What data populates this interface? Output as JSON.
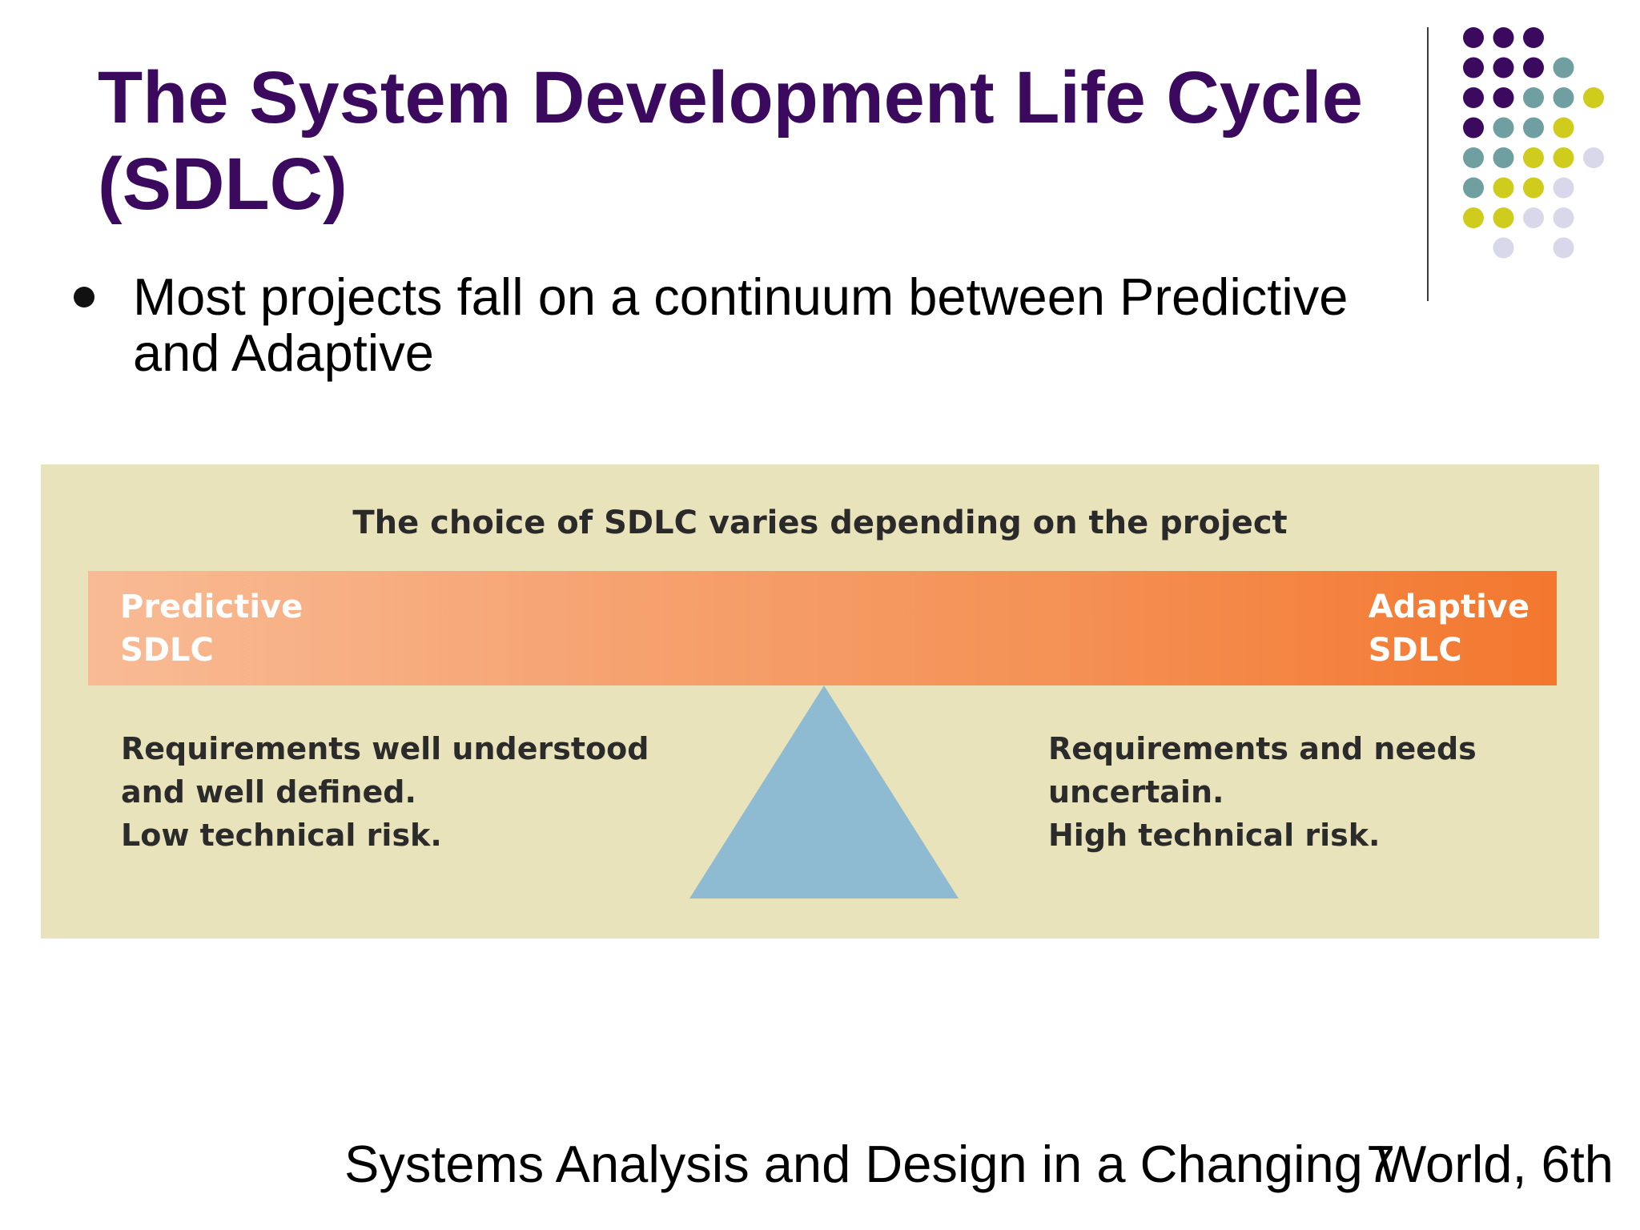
{
  "title": {
    "line1": "The System Development Life Cycle",
    "line2": "(SDLC)"
  },
  "bullets": [
    {
      "line1": "Most projects fall on a continuum between Predictive",
      "line2": "and Adaptive"
    }
  ],
  "figure": {
    "title": "The choice of SDLC varies depending on the project",
    "left_end": {
      "line1": "Predictive",
      "line2": "SDLC"
    },
    "right_end": {
      "line1": "Adaptive",
      "line2": "SDLC"
    },
    "left_desc": [
      "Requirements well understood",
      "and well defined.",
      "Low technical risk."
    ],
    "right_desc": [
      "Requirements and needs",
      "uncertain.",
      "High technical risk."
    ]
  },
  "footer": "Systems Analysis and Design in a Changing World, 6th",
  "slide_number": "7",
  "colors": {
    "title": "#3b0a5e",
    "figure_bg": "#e9e3bb",
    "bar_start": "#f8bb95",
    "bar_end": "#f3772e",
    "pivot": "#8fbbd2",
    "dot_purple": "#3b0a5e",
    "dot_teal": "#6f9fa0",
    "dot_yellow": "#cfcc1e",
    "dot_lavender": "#d9d7ea"
  }
}
